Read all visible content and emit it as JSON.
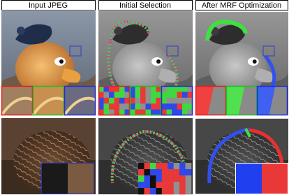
{
  "headers": [
    "Input JPEG",
    "Initial Selection",
    "After MRF Optimization"
  ]
}
